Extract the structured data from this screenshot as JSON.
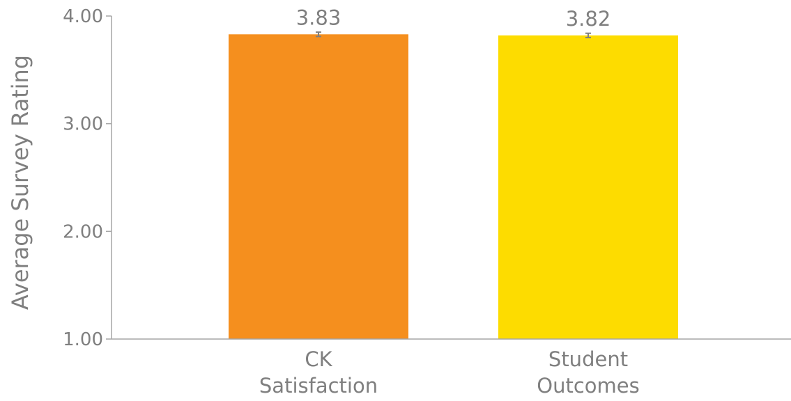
{
  "chart_data": {
    "type": "bar",
    "title": "",
    "xlabel": "",
    "ylabel": "Average Survey Rating",
    "ylim": [
      1.0,
      4.0
    ],
    "yticks": [
      "1.00",
      "2.00",
      "3.00",
      "4.00"
    ],
    "grid": false,
    "legend": "none",
    "categories": [
      [
        "CK",
        "Satisfaction"
      ],
      [
        "Student",
        "Outcomes"
      ]
    ],
    "values": [
      3.83,
      3.82
    ],
    "value_labels": [
      "3.83",
      "3.82"
    ],
    "error": [
      0.02,
      0.02
    ],
    "colors": [
      "#f58f1e",
      "#fddc00"
    ],
    "text_color": "#7f7f7f",
    "axis_color": "#a6a6a6"
  }
}
